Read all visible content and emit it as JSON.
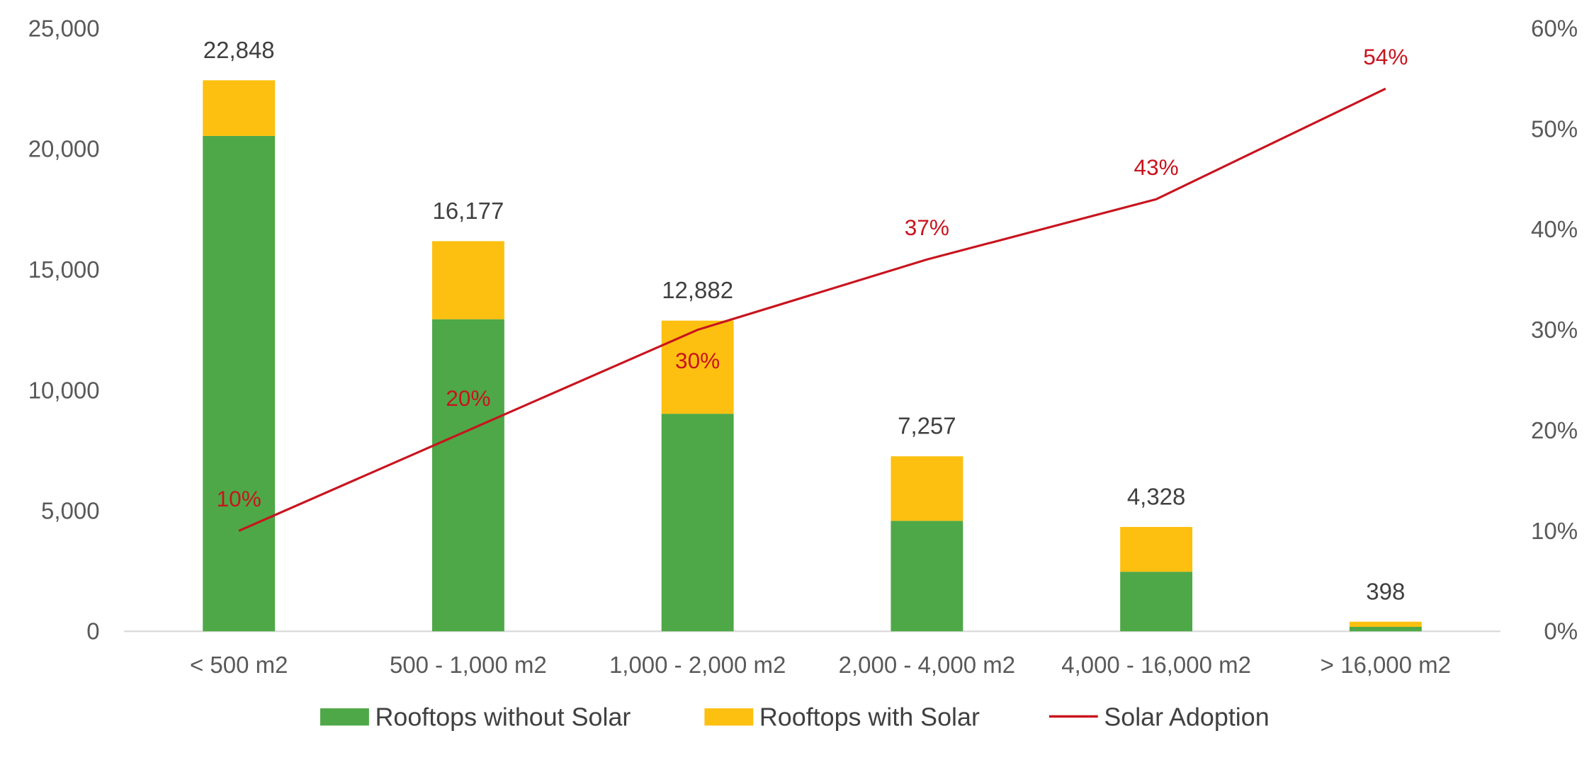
{
  "chart_data": {
    "type": "bar",
    "stacked": true,
    "title": "",
    "categories": [
      "< 500 m2",
      "500 - 1,000 m2",
      "1,000 - 2,000 m2",
      "2,000 - 4,000 m2",
      "4,000 - 16,000 m2",
      "> 16,000 m2"
    ],
    "series": [
      {
        "name": "Rooftops without Solar",
        "type": "bar",
        "color": "#4EA847",
        "values": [
          20540,
          12940,
          9020,
          4580,
          2470,
          185
        ]
      },
      {
        "name": "Rooftops with Solar",
        "type": "bar",
        "color": "#FDC010",
        "values": [
          2308,
          3237,
          3862,
          2677,
          1858,
          213
        ]
      },
      {
        "name": "Solar Adoption",
        "type": "line",
        "axis": "right",
        "color": "#C8141E",
        "values": [
          10,
          20,
          30,
          37,
          43,
          54
        ]
      }
    ],
    "total_labels": [
      "22,848",
      "16,177",
      "12,882",
      "7,257",
      "4,328",
      "398"
    ],
    "adoption_labels": [
      "10%",
      "20%",
      "30%",
      "37%",
      "43%",
      "54%"
    ],
    "left_axis": {
      "ylim": [
        0,
        25000
      ],
      "ticks": [
        "0",
        "5,000",
        "10,000",
        "15,000",
        "20,000",
        "25,000"
      ]
    },
    "right_axis": {
      "ylim": [
        0,
        60
      ],
      "ticks": [
        "0%",
        "10%",
        "20%",
        "30%",
        "40%",
        "50%",
        "60%"
      ]
    },
    "xlabel": "",
    "ylabel": "",
    "grid": false,
    "legend": "bottom-center"
  }
}
